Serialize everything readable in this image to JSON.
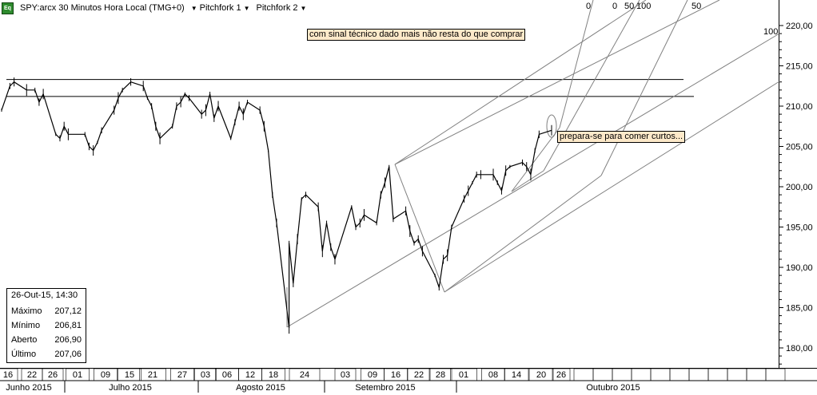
{
  "header": {
    "title": "SPY:arcx 30 Minutos Hora Local (TMG+0)",
    "menus": [
      "Pitchfork 1",
      "Pitchfork 2"
    ],
    "logo_text": "Eq"
  },
  "annotations": {
    "top_note": "com sinal técnico dado mais não resta do que comprar",
    "right_note": "prepara-se para comer curtos..."
  },
  "fib_labels": [
    "0",
    "0",
    "50",
    "100",
    "50",
    "100"
  ],
  "info_box": {
    "date": "26-Out-15, 14:30",
    "rows": [
      {
        "label": "Máximo",
        "value": "207,12"
      },
      {
        "label": "Mínimo",
        "value": "206,81"
      },
      {
        "label": "Aberto",
        "value": "206,90"
      },
      {
        "label": "Último",
        "value": "207,06"
      }
    ]
  },
  "colors": {
    "price": "#000000",
    "lines": "#808080",
    "annotation_bg": "#fde9c9",
    "logo": "#2e8b2e"
  },
  "chart_data": {
    "type": "line",
    "ylim": [
      177,
      223
    ],
    "y_ticks": [
      "220,00",
      "215,00",
      "210,00",
      "205,00",
      "200,00",
      "195,00",
      "190,00",
      "185,00",
      "180,00"
    ],
    "x_day_labels": [
      "16",
      "22",
      "26",
      "01",
      "09",
      "15",
      "21",
      "27",
      "03",
      "06",
      "12",
      "18",
      "24",
      "03",
      "09",
      "16",
      "22",
      "28",
      "01",
      "08",
      "14",
      "20",
      "26"
    ],
    "x_month_labels": [
      "Junho 2015",
      "Julho 2015",
      "Agosto 2015",
      "Setembro 2015",
      "Outubro 2015"
    ],
    "resistance_levels": [
      213.3,
      211.2
    ],
    "series": [
      {
        "points": [
          [
            "16-Jun",
            209.5
          ],
          [
            "18-Jun",
            212.5
          ],
          [
            "19-Jun",
            213.0
          ],
          [
            "22-Jun",
            212.0
          ],
          [
            "24-Jun",
            212.0
          ],
          [
            "25-Jun",
            210.5
          ],
          [
            "26-Jun",
            211.5
          ],
          [
            "29-Jun",
            206.5
          ],
          [
            "30-Jun",
            206.0
          ],
          [
            "01-Jul",
            207.5
          ],
          [
            "02-Jul",
            206.5
          ],
          [
            "06-Jul",
            206.5
          ],
          [
            "07-Jul",
            205.0
          ],
          [
            "08-Jul",
            204.5
          ],
          [
            "09-Jul",
            205.5
          ],
          [
            "10-Jul",
            207.0
          ],
          [
            "13-Jul",
            209.5
          ],
          [
            "14-Jul",
            211.0
          ],
          [
            "15-Jul",
            212.0
          ],
          [
            "17-Jul",
            213.0
          ],
          [
            "20-Jul",
            212.5
          ],
          [
            "21-Jul",
            211.0
          ],
          [
            "22-Jul",
            210.0
          ],
          [
            "23-Jul",
            207.5
          ],
          [
            "24-Jul",
            206.0
          ],
          [
            "27-Jul",
            207.5
          ],
          [
            "28-Jul",
            210.0
          ],
          [
            "29-Jul",
            210.5
          ],
          [
            "30-Jul",
            211.5
          ],
          [
            "31-Jul",
            211.0
          ],
          [
            "03-Ago",
            209.0
          ],
          [
            "04-Ago",
            209.5
          ],
          [
            "05-Ago",
            211.5
          ],
          [
            "06-Ago",
            208.5
          ],
          [
            "07-Ago",
            210.0
          ],
          [
            "10-Ago",
            206.0
          ],
          [
            "11-Ago",
            208.0
          ],
          [
            "12-Ago",
            210.0
          ],
          [
            "13-Ago",
            209.0
          ],
          [
            "14-Ago",
            210.5
          ],
          [
            "17-Ago",
            209.5
          ],
          [
            "18-Ago",
            207.5
          ],
          [
            "19-Ago",
            204.5
          ],
          [
            "20-Ago",
            199.0
          ],
          [
            "21-Ago",
            195.5
          ],
          [
            "24-Ago",
            182.5
          ],
          [
            "24-Ago",
            193.0
          ],
          [
            "25-Ago",
            188.0
          ],
          [
            "26-Ago",
            193.5
          ],
          [
            "27-Ago",
            198.5
          ],
          [
            "28-Ago",
            199.0
          ],
          [
            "31-Ago",
            197.5
          ],
          [
            "01-Set",
            192.0
          ],
          [
            "02-Set",
            195.5
          ],
          [
            "03-Set",
            192.5
          ],
          [
            "04-Set",
            191.0
          ],
          [
            "08-Set",
            197.5
          ],
          [
            "09-Set",
            195.0
          ],
          [
            "10-Set",
            195.5
          ],
          [
            "11-Set",
            196.5
          ],
          [
            "14-Set",
            195.5
          ],
          [
            "15-Set",
            199.0
          ],
          [
            "16-Set",
            200.5
          ],
          [
            "17-Set",
            202.5
          ],
          [
            "18-Set",
            196.0
          ],
          [
            "21-Set",
            197.0
          ],
          [
            "22-Set",
            194.5
          ],
          [
            "23-Set",
            193.0
          ],
          [
            "24-Set",
            193.5
          ],
          [
            "25-Set",
            192.0
          ],
          [
            "28-Set",
            189.0
          ],
          [
            "29-Set",
            187.5
          ],
          [
            "30-Set",
            191.0
          ],
          [
            "01-Out",
            191.5
          ],
          [
            "02-Out",
            195.0
          ],
          [
            "05-Out",
            198.5
          ],
          [
            "06-Out",
            199.5
          ],
          [
            "07-Out",
            200.5
          ],
          [
            "08-Out",
            201.5
          ],
          [
            "09-Out",
            201.5
          ],
          [
            "12-Out",
            201.5
          ],
          [
            "13-Out",
            200.5
          ],
          [
            "14-Out",
            199.5
          ],
          [
            "15-Out",
            202.0
          ],
          [
            "16-Out",
            202.5
          ],
          [
            "19-Out",
            203.0
          ],
          [
            "20-Out",
            202.5
          ],
          [
            "21-Out",
            201.5
          ],
          [
            "22-Out",
            204.5
          ],
          [
            "23-Out",
            206.5
          ],
          [
            "26-Out",
            207.0
          ]
        ]
      }
    ]
  }
}
